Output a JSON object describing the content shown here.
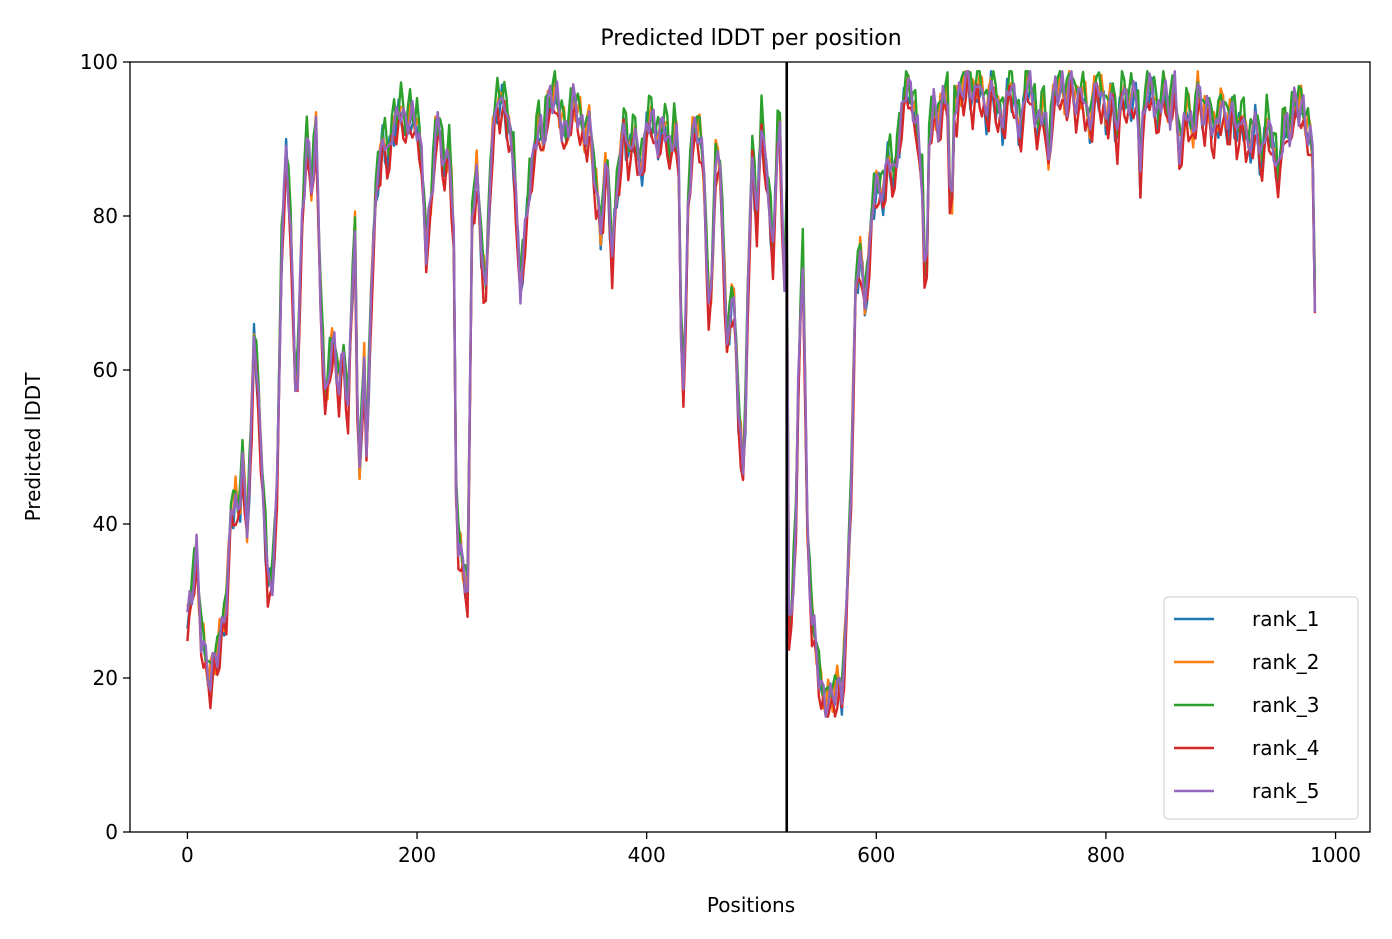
{
  "chart_data": {
    "type": "line",
    "title": "Predicted lDDT per position",
    "xlabel": "Positions",
    "ylabel": "Predicted lDDT",
    "xlim": [
      -50,
      1030
    ],
    "ylim": [
      0,
      100
    ],
    "xticks": [
      0,
      200,
      400,
      600,
      800,
      1000
    ],
    "yticks": [
      0,
      20,
      40,
      60,
      80,
      100
    ],
    "grid": false,
    "legend_position": "lower-right",
    "chain_boundary_x": 522,
    "x_range": [
      0,
      982
    ],
    "series": [
      {
        "name": "rank_1",
        "color": "#1f77b4",
        "offset": -0.6
      },
      {
        "name": "rank_2",
        "color": "#ff7f0e",
        "offset": 0.4
      },
      {
        "name": "rank_3",
        "color": "#2ca02c",
        "offset": 1.2
      },
      {
        "name": "rank_4",
        "color": "#d62728",
        "offset": -1.8
      },
      {
        "name": "rank_5",
        "color": "#9467bd",
        "offset": 0.0
      }
    ],
    "profile": [
      [
        0,
        27
      ],
      [
        5,
        33
      ],
      [
        8,
        36
      ],
      [
        12,
        26
      ],
      [
        16,
        22
      ],
      [
        20,
        20
      ],
      [
        25,
        23
      ],
      [
        30,
        26
      ],
      [
        34,
        30
      ],
      [
        38,
        41
      ],
      [
        42,
        44
      ],
      [
        45,
        39
      ],
      [
        48,
        50
      ],
      [
        52,
        38
      ],
      [
        56,
        55
      ],
      [
        58,
        64
      ],
      [
        62,
        57
      ],
      [
        65,
        46
      ],
      [
        70,
        33
      ],
      [
        74,
        32
      ],
      [
        78,
        45
      ],
      [
        82,
        75
      ],
      [
        86,
        89
      ],
      [
        90,
        78
      ],
      [
        95,
        54
      ],
      [
        100,
        80
      ],
      [
        104,
        90
      ],
      [
        108,
        84
      ],
      [
        112,
        91
      ],
      [
        116,
        70
      ],
      [
        120,
        55
      ],
      [
        124,
        62
      ],
      [
        128,
        63
      ],
      [
        132,
        58
      ],
      [
        136,
        62
      ],
      [
        140,
        55
      ],
      [
        144,
        72
      ],
      [
        148,
        86
      ],
      [
        152,
        75
      ],
      [
        156,
        48
      ],
      [
        160,
        70
      ],
      [
        165,
        85
      ],
      [
        170,
        90
      ],
      [
        175,
        88
      ],
      [
        180,
        92
      ],
      [
        185,
        94
      ],
      [
        190,
        92
      ],
      [
        195,
        93
      ],
      [
        200,
        92
      ],
      [
        205,
        86
      ],
      [
        208,
        75
      ],
      [
        212,
        82
      ],
      [
        216,
        90
      ],
      [
        220,
        92
      ],
      [
        224,
        85
      ],
      [
        228,
        90
      ],
      [
        232,
        76
      ],
      [
        234,
        45
      ],
      [
        236,
        38
      ],
      [
        240,
        34
      ],
      [
        244,
        32
      ],
      [
        246,
        55
      ],
      [
        248,
        80
      ],
      [
        252,
        86
      ],
      [
        255,
        78
      ],
      [
        260,
        70
      ],
      [
        265,
        90
      ],
      [
        270,
        95
      ],
      [
        275,
        95
      ],
      [
        280,
        92
      ],
      [
        285,
        86
      ],
      [
        290,
        70
      ],
      [
        295,
        80
      ],
      [
        300,
        86
      ],
      [
        305,
        92
      ],
      [
        310,
        90
      ],
      [
        315,
        95
      ],
      [
        320,
        96
      ],
      [
        325,
        93
      ],
      [
        330,
        90
      ],
      [
        335,
        95
      ],
      [
        340,
        94
      ],
      [
        345,
        90
      ],
      [
        350,
        92
      ],
      [
        355,
        85
      ],
      [
        360,
        78
      ],
      [
        365,
        88
      ],
      [
        370,
        75
      ],
      [
        375,
        85
      ],
      [
        380,
        92
      ],
      [
        385,
        88
      ],
      [
        390,
        91
      ],
      [
        395,
        85
      ],
      [
        400,
        92
      ],
      [
        405,
        93
      ],
      [
        410,
        89
      ],
      [
        415,
        93
      ],
      [
        420,
        88
      ],
      [
        425,
        92
      ],
      [
        430,
        82
      ],
      [
        432,
        60
      ],
      [
        436,
        82
      ],
      [
        440,
        90
      ],
      [
        445,
        92
      ],
      [
        450,
        85
      ],
      [
        455,
        64
      ],
      [
        460,
        88
      ],
      [
        465,
        85
      ],
      [
        470,
        62
      ],
      [
        475,
        72
      ],
      [
        480,
        55
      ],
      [
        484,
        48
      ],
      [
        488,
        70
      ],
      [
        492,
        88
      ],
      [
        496,
        80
      ],
      [
        500,
        92
      ],
      [
        505,
        85
      ],
      [
        510,
        75
      ],
      [
        515,
        94
      ],
      [
        520,
        80
      ],
      [
        522,
        90
      ],
      [
        523,
        25
      ],
      [
        526,
        28
      ],
      [
        530,
        40
      ],
      [
        533,
        65
      ],
      [
        536,
        75
      ],
      [
        540,
        40
      ],
      [
        544,
        27
      ],
      [
        548,
        24
      ],
      [
        552,
        18
      ],
      [
        556,
        17
      ],
      [
        560,
        17
      ],
      [
        565,
        19
      ],
      [
        570,
        18
      ],
      [
        574,
        28
      ],
      [
        578,
        45
      ],
      [
        582,
        70
      ],
      [
        586,
        76
      ],
      [
        590,
        68
      ],
      [
        595,
        78
      ],
      [
        600,
        85
      ],
      [
        605,
        82
      ],
      [
        610,
        88
      ],
      [
        615,
        85
      ],
      [
        620,
        90
      ],
      [
        625,
        97
      ],
      [
        630,
        96
      ],
      [
        635,
        92
      ],
      [
        640,
        85
      ],
      [
        645,
        90
      ],
      [
        650,
        94
      ],
      [
        655,
        92
      ],
      [
        660,
        96
      ],
      [
        665,
        97
      ],
      [
        670,
        94
      ],
      [
        675,
        97
      ],
      [
        680,
        98
      ],
      [
        685,
        95
      ],
      [
        690,
        98
      ],
      [
        695,
        93
      ],
      [
        700,
        97
      ],
      [
        705,
        95
      ],
      [
        710,
        92
      ],
      [
        715,
        97
      ],
      [
        720,
        96
      ],
      [
        725,
        90
      ],
      [
        730,
        97
      ],
      [
        735,
        97
      ],
      [
        740,
        91
      ],
      [
        745,
        95
      ],
      [
        750,
        88
      ],
      [
        755,
        96
      ],
      [
        760,
        97
      ],
      [
        765,
        95
      ],
      [
        770,
        98
      ],
      [
        775,
        94
      ],
      [
        780,
        97
      ],
      [
        785,
        91
      ],
      [
        790,
        96
      ],
      [
        795,
        97
      ],
      [
        800,
        93
      ],
      [
        805,
        96
      ],
      [
        810,
        91
      ],
      [
        815,
        97
      ],
      [
        820,
        94
      ],
      [
        825,
        97
      ],
      [
        830,
        90
      ],
      [
        835,
        96
      ],
      [
        840,
        97
      ],
      [
        845,
        92
      ],
      [
        850,
        97
      ],
      [
        855,
        93
      ],
      [
        860,
        97
      ],
      [
        865,
        87
      ],
      [
        870,
        95
      ],
      [
        875,
        90
      ],
      [
        880,
        96
      ],
      [
        885,
        93
      ],
      [
        890,
        94
      ],
      [
        895,
        90
      ],
      [
        900,
        95
      ],
      [
        905,
        92
      ],
      [
        910,
        94
      ],
      [
        915,
        91
      ],
      [
        920,
        93
      ],
      [
        925,
        88
      ],
      [
        930,
        93
      ],
      [
        935,
        87
      ],
      [
        940,
        92
      ],
      [
        945,
        90
      ],
      [
        950,
        85
      ],
      [
        955,
        92
      ],
      [
        960,
        91
      ],
      [
        965,
        95
      ],
      [
        970,
        94
      ],
      [
        975,
        92
      ],
      [
        980,
        88
      ],
      [
        982,
        70
      ]
    ],
    "spikes": [
      {
        "x": 150,
        "v": 47
      },
      {
        "x": 432,
        "v": 58
      },
      {
        "x": 484,
        "v": 46
      },
      {
        "x": 520,
        "v": 72
      },
      {
        "x": 643,
        "v": 69
      },
      {
        "x": 665,
        "v": 78
      },
      {
        "x": 830,
        "v": 85
      }
    ]
  }
}
